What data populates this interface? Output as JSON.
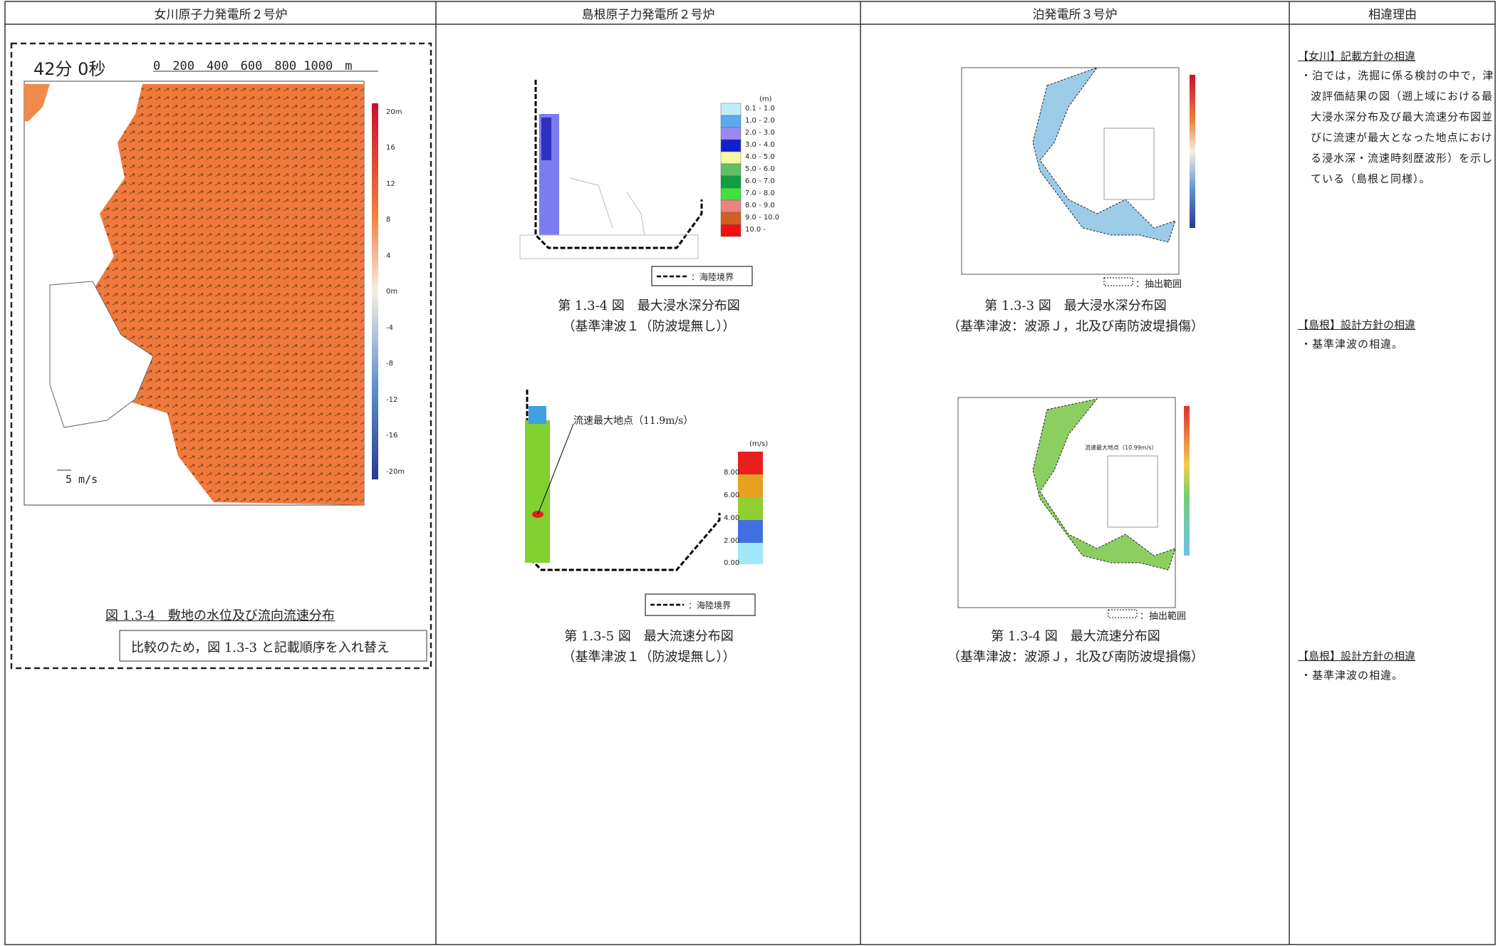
{
  "header": [
    "女川原子力発電所２号炉",
    "島根原子力発電所２号炉",
    "泊発電所３号炉",
    "相違理由"
  ],
  "onagawa": {
    "time": "42分 0秒",
    "scale": "0　200　400　600　800 1000　m",
    "colorbar": [
      "20m",
      "16",
      "12",
      "8",
      "4",
      "0m",
      "-4",
      "-8",
      "-12",
      "-16",
      "-20m"
    ],
    "vector": "5 m/s",
    "caption": "図 1.3-4　敷地の水位及び流向流速分布",
    "note": "比較のため，図 1.3-3 と記載順序を入れ替え"
  },
  "shimane": {
    "figures": [
      {
        "legend_title": "(m)",
        "legend": [
          "0.1 - 1.0",
          "1.0 - 2.0",
          "2.0 - 3.0",
          "3.0 - 4.0",
          "4.0 - 5.0",
          "5.0 - 6.0",
          "6.0 - 7.0",
          "7.0 - 8.0",
          "8.0 - 9.0",
          "9.0 - 10.0",
          "10.0 -"
        ],
        "boundary": "：海陸境界",
        "caption": "第 1.3-4 図　最大浸水深分布図",
        "condition": "（基準津波１（防波堤無し））"
      },
      {
        "legend_title": "(m/s)",
        "legend": [
          "8.00",
          "6.00",
          "4.00",
          "2.00",
          "0.00"
        ],
        "annotation": "流速最大地点（11.9m/s）",
        "boundary": "：海陸境界",
        "caption": "第 1.3-5 図　最大流速分布図",
        "condition": "（基準津波１（防波堤無し））"
      }
    ]
  },
  "tomari": {
    "figures": [
      {
        "range": "：抽出範囲",
        "caption": "第 1.3-3 図　最大浸水深分布図",
        "condition": "（基準津波：波源Ｊ，北及び南防波堤損傷）"
      },
      {
        "annotation": "流速最大地点（10.99m/s）",
        "range": "：抽出範囲",
        "caption": "第 1.3-4 図　最大流速分布図",
        "condition": "（基準津波：波源Ｊ，北及び南防波堤損傷）"
      }
    ]
  },
  "reasons": [
    {
      "heading": "【女川】記載方針の相違",
      "text": "・泊では，洗掘に係る検討の中で，津波評価結果の図（遡上域における最大浸水深分布及び最大流速分布図並びに流速が最大となった地点における浸水深・流速時刻歴波形）を示している（島根と同様）。"
    },
    {
      "heading": "【島根】設計方針の相違",
      "text": "・基準津波の相違。"
    },
    {
      "heading": "【島根】設計方針の相違",
      "text": "・基準津波の相違。"
    }
  ]
}
